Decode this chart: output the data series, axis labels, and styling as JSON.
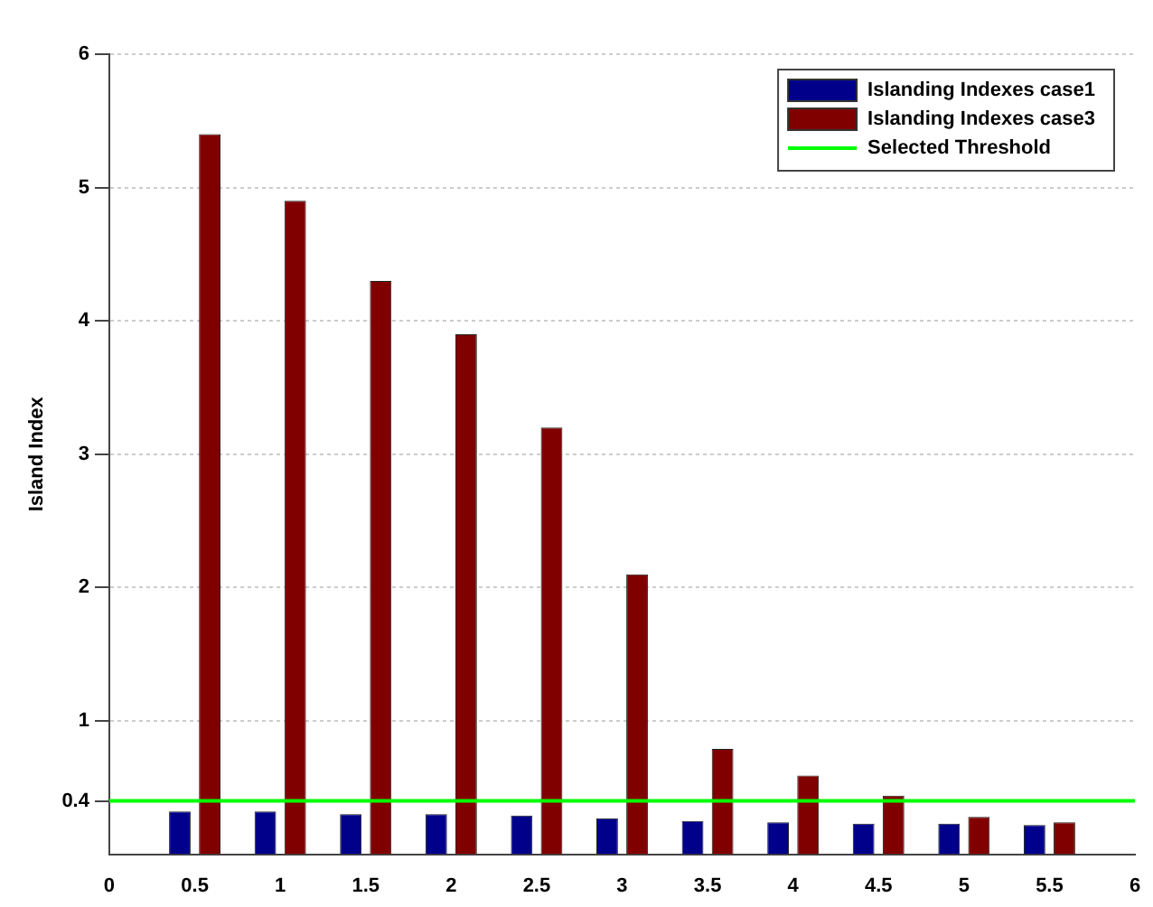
{
  "chart_data": {
    "type": "bar",
    "ylabel": "Island Index",
    "x": [
      0.5,
      1,
      1.5,
      2,
      2.5,
      3,
      3.5,
      4,
      4.5,
      5,
      5.5
    ],
    "series": [
      {
        "name": "Islanding Indexes case1",
        "color": "#00008b",
        "values": [
          0.32,
          0.32,
          0.3,
          0.3,
          0.29,
          0.27,
          0.25,
          0.24,
          0.23,
          0.23,
          0.22
        ]
      },
      {
        "name": "Islanding Indexes case3",
        "color": "#800000",
        "values": [
          5.4,
          4.9,
          4.3,
          3.9,
          3.2,
          2.1,
          0.79,
          0.59,
          0.44,
          0.28,
          0.24
        ]
      }
    ],
    "xlim": [
      0,
      6
    ],
    "xticks": [
      0,
      0.5,
      1,
      1.5,
      2,
      2.5,
      3,
      3.5,
      4,
      4.5,
      5,
      5.5,
      6
    ],
    "ylim": [
      0,
      6
    ],
    "yticks": [
      0.4,
      1,
      2,
      3,
      4,
      5,
      6
    ],
    "ref_lines": [
      {
        "axis": "y",
        "value": 0.4,
        "label": "Selected Threshold",
        "color": "#00ff00"
      }
    ],
    "grid": "y",
    "legend": "top right"
  }
}
